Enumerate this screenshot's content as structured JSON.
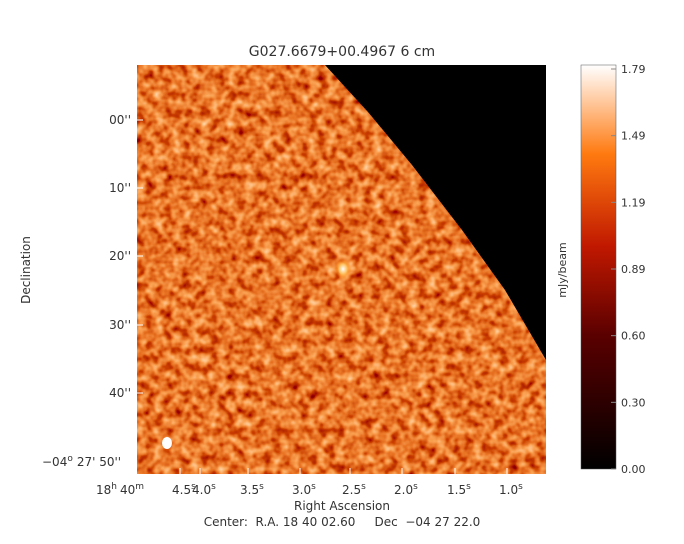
{
  "title": "G027.6679+00.4967 6 cm",
  "x_axis": {
    "label": "Right Ascension",
    "origin": {
      "hours": "18",
      "h": "h",
      "minutes": "40",
      "m": "m"
    },
    "sup": "s",
    "ticks": [
      "4.5",
      "4.0",
      "3.5",
      "3.0",
      "2.5",
      "2.0",
      "1.5",
      "1.0"
    ]
  },
  "y_axis": {
    "label": "Declination",
    "ticks": [
      "00''",
      "10''",
      "20''",
      "30''",
      "40''"
    ],
    "origin": {
      "deg": "−04",
      "o": "o",
      "rest": "27' 50''"
    }
  },
  "colorbar": {
    "label": "mJy/beam",
    "ticks": [
      "1.79",
      "1.49",
      "1.19",
      "0.89",
      "0.60",
      "0.30",
      "0.00"
    ]
  },
  "footer": {
    "center": "Center:  R.A. 18 40 02.60     Dec  −04 27 22.0"
  }
}
